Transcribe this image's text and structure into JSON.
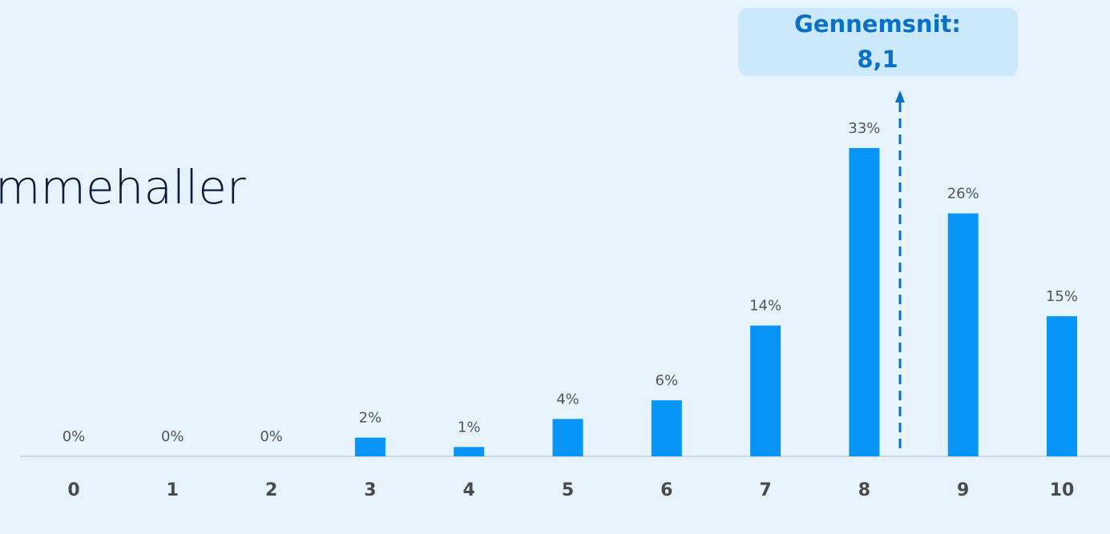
{
  "chart_data": {
    "type": "bar",
    "title": "mmehaller",
    "categories": [
      "0",
      "1",
      "2",
      "3",
      "4",
      "5",
      "6",
      "7",
      "8",
      "9",
      "10"
    ],
    "values": [
      0,
      0,
      0,
      2,
      1,
      4,
      6,
      14,
      33,
      26,
      15
    ],
    "value_labels": [
      "0%",
      "0%",
      "0%",
      "2%",
      "1%",
      "4%",
      "6%",
      "14%",
      "33%",
      "26%",
      "15%"
    ],
    "color": "#0895f7",
    "annotation": {
      "label": "Gennemsnit:",
      "value": "8,1"
    }
  }
}
